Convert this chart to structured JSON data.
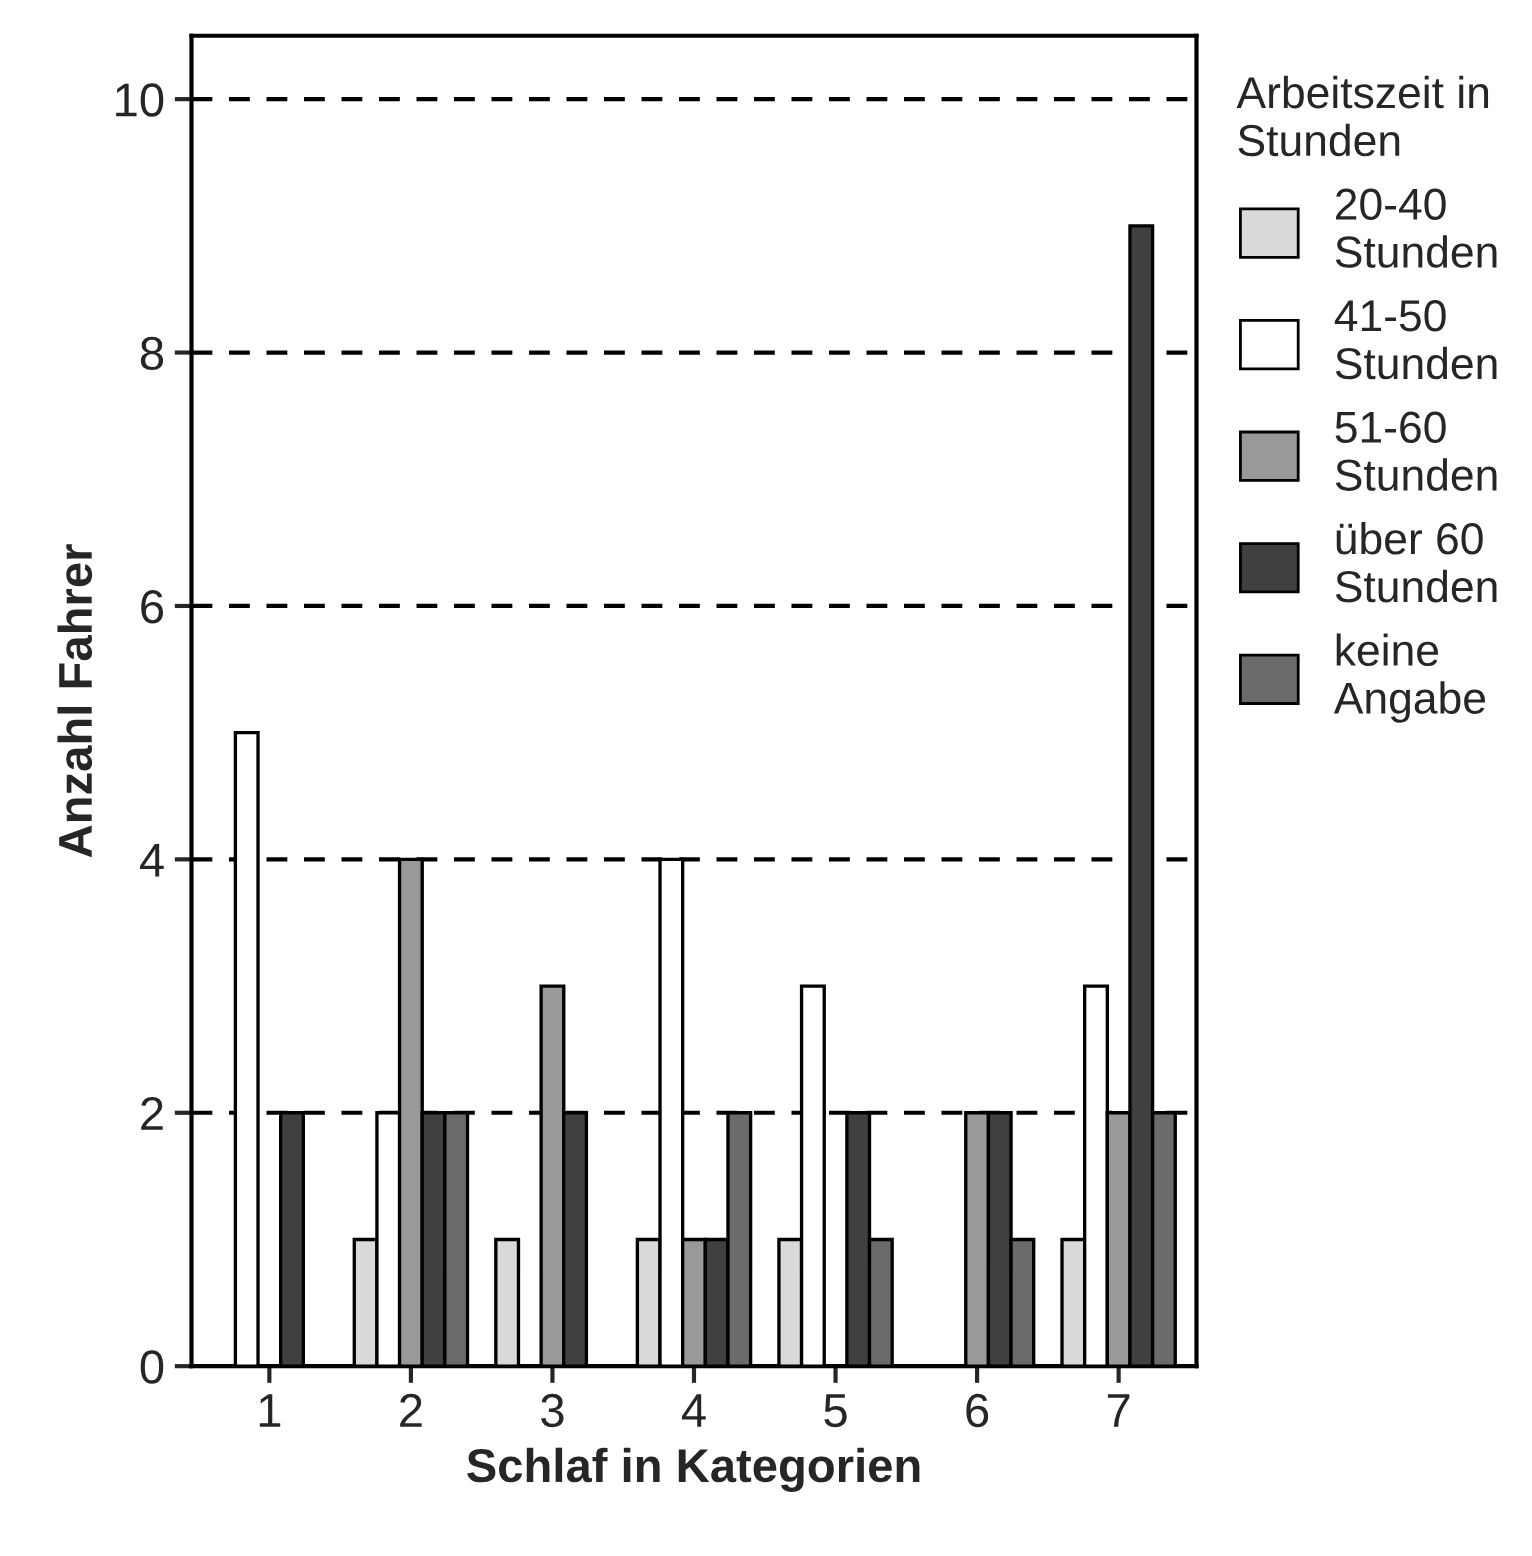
{
  "chart_data": {
    "type": "bar",
    "xlabel": "Schlaf in Kategorien",
    "ylabel": "Anzahl Fahrer",
    "legend_title": "Arbeitszeit in Stunden",
    "categories": [
      "1",
      "2",
      "3",
      "4",
      "5",
      "6",
      "7"
    ],
    "series": [
      {
        "name": "20-40 Stunden",
        "color": "#d9d9d9",
        "values": [
          0,
          1,
          1,
          1,
          1,
          0,
          1
        ]
      },
      {
        "name": "41-50 Stunden",
        "color": "#ffffff",
        "values": [
          5,
          2,
          0,
          4,
          3,
          0,
          3
        ]
      },
      {
        "name": "51-60 Stunden",
        "color": "#999999",
        "values": [
          0,
          4,
          3,
          1,
          0,
          2,
          2
        ]
      },
      {
        "name": "über 60 Stunden",
        "color": "#404040",
        "values": [
          2,
          2,
          2,
          1,
          2,
          2,
          9
        ]
      },
      {
        "name": "keine Angabe",
        "color": "#6b6b6b",
        "values": [
          0,
          2,
          0,
          2,
          1,
          1,
          2
        ]
      }
    ],
    "ylim": [
      0,
      10.5
    ],
    "yticks": [
      0,
      2,
      4,
      6,
      8,
      10
    ],
    "grid": "y",
    "legend": "right"
  }
}
